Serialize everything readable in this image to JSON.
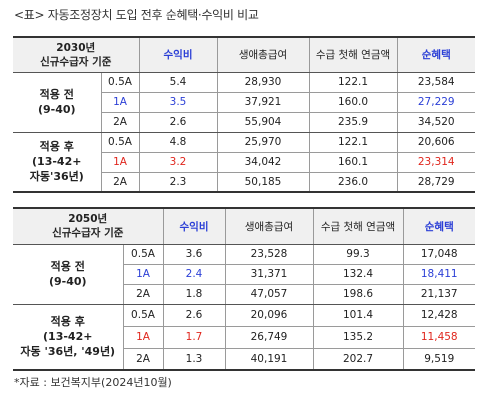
{
  "title": "<표> 자동조정장치 도입 전후 순혜택·수익비 비교",
  "colors": {
    "blue": "#2b3fd6",
    "red": "#e0261d"
  },
  "tables": [
    {
      "corner": [
        "2030년",
        "신규수급자 기준"
      ],
      "headers": [
        "수익비",
        "생애총급여",
        "수급 첫해 연금액",
        "순혜택"
      ],
      "groups": [
        {
          "label": [
            "적용 전",
            "(9-40)"
          ],
          "rows": [
            {
              "rate": "0.5A",
              "cells": [
                "5.4",
                "28,930",
                "122.1",
                "23,584"
              ]
            },
            {
              "rate": "1A",
              "cells": [
                "3.5",
                "37,921",
                "160.0",
                "27,229"
              ]
            },
            {
              "rate": "2A",
              "cells": [
                "2.6",
                "55,904",
                "235.9",
                "34,520"
              ]
            }
          ]
        },
        {
          "label": [
            "적용 후",
            "(13-42+",
            "자동'36년)"
          ],
          "rows": [
            {
              "rate": "0.5A",
              "cells": [
                "4.8",
                "25,970",
                "122.1",
                "20,606"
              ]
            },
            {
              "rate": "1A",
              "cells": [
                "3.2",
                "34,042",
                "160.1",
                "23,314"
              ]
            },
            {
              "rate": "2A",
              "cells": [
                "2.3",
                "50,185",
                "236.0",
                "28,729"
              ]
            }
          ]
        }
      ]
    },
    {
      "corner": [
        "2050년",
        "신규수급자 기준"
      ],
      "headers": [
        "수익비",
        "생애총급여",
        "수급 첫해 연금액",
        "순혜택"
      ],
      "groups": [
        {
          "label": [
            "적용 전",
            "(9-40)"
          ],
          "rows": [
            {
              "rate": "0.5A",
              "cells": [
                "3.6",
                "23,528",
                "99.3",
                "17,048"
              ]
            },
            {
              "rate": "1A",
              "cells": [
                "2.4",
                "31,371",
                "132.4",
                "18,411"
              ]
            },
            {
              "rate": "2A",
              "cells": [
                "1.8",
                "47,057",
                "198.6",
                "21,137"
              ]
            }
          ]
        },
        {
          "label": [
            "적용 후",
            "(13-42+",
            "자동 '36년, '49년)"
          ],
          "rows": [
            {
              "rate": "0.5A",
              "cells": [
                "2.6",
                "20,096",
                "101.4",
                "12,428"
              ]
            },
            {
              "rate": "1A",
              "cells": [
                "1.7",
                "26,749",
                "135.2",
                "11,458"
              ]
            },
            {
              "rate": "2A",
              "cells": [
                "1.3",
                "40,191",
                "202.7",
                "9,519"
              ]
            }
          ]
        }
      ]
    }
  ],
  "source": "*자료 : 보건복지부(2024년10월)"
}
